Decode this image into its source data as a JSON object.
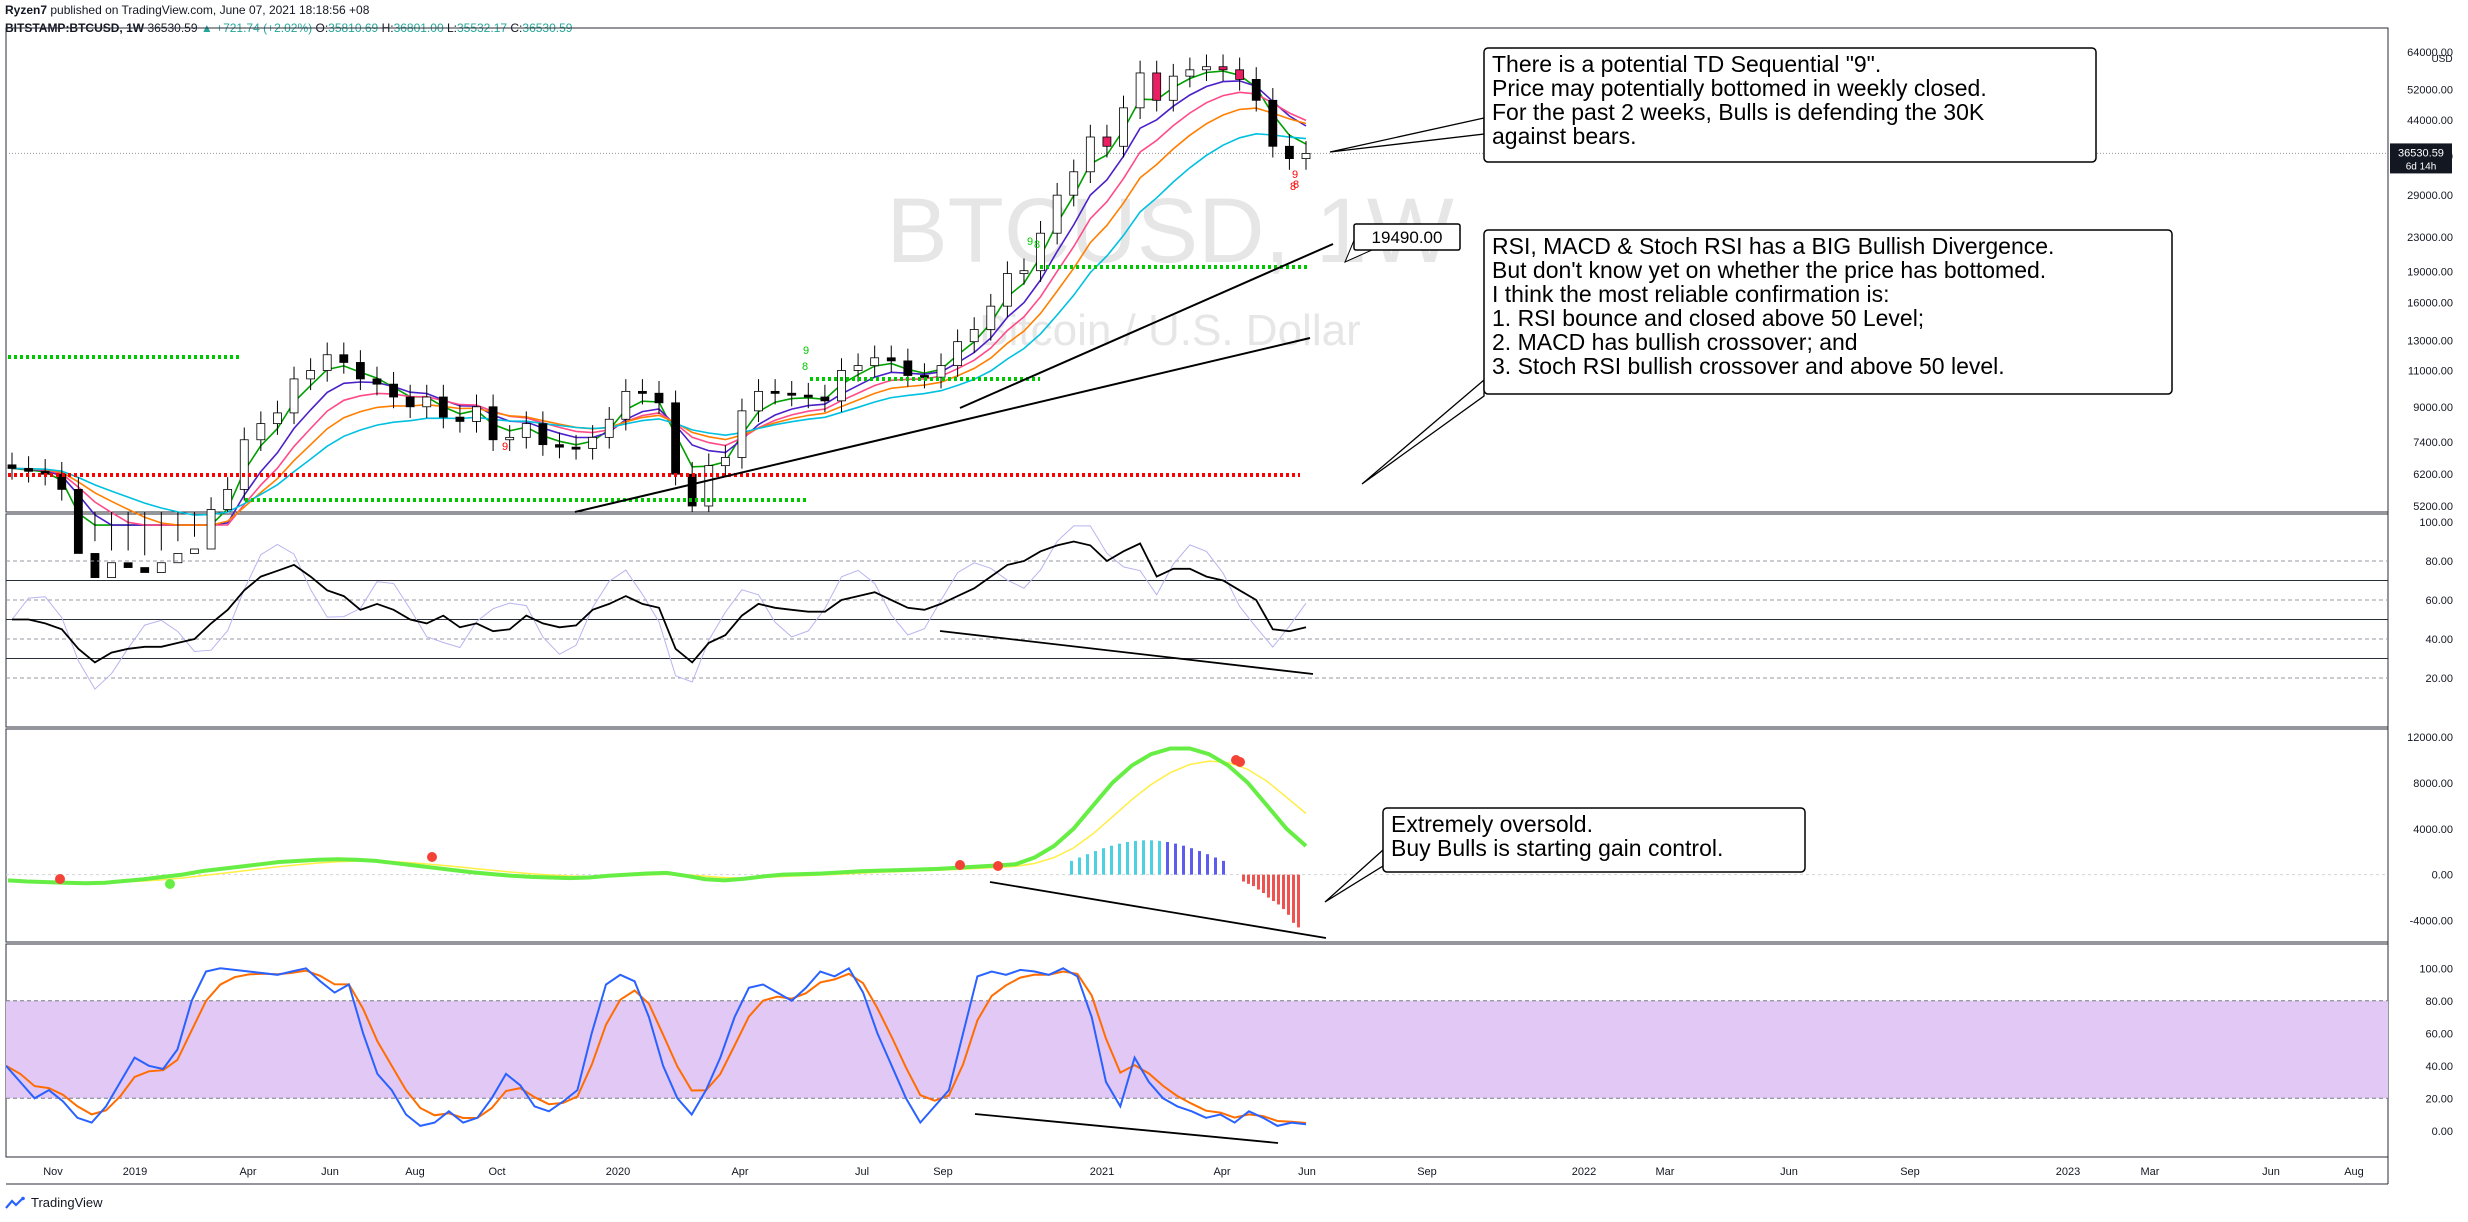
{
  "header": {
    "author": "Ryzen7",
    "published_line": " published on TradingView.com, June 07, 2021 18:18:56 +08",
    "symbol": "BITSTAMP:BTCUSD, 1W",
    "last": "36530.59",
    "change": "▲ +721.74 (+2.02%)",
    "o_label": "O:",
    "o": "35810.69",
    "h_label": "H:",
    "h": "36801.00",
    "l_label": "L:",
    "l": "35532.17",
    "c_label": "C:",
    "c": "36530.59"
  },
  "watermark": {
    "title": "BTCUSD, 1W",
    "subtitle": "Bitcoin / U.S. Dollar"
  },
  "footer": {
    "brand": "TradingView"
  },
  "colors": {
    "up": "#26a69a",
    "down": "#000000",
    "green_td": "#00c800",
    "red_td": "#ff0000",
    "stoch_band": "#e1c8f5",
    "macd_line": "#66ee44",
    "macd_signal": "#ffee44"
  },
  "chart_data": [
    {
      "type": "candlestick",
      "pane": "price",
      "log_scale": true,
      "currency": "USD",
      "price_ticks": [
        "64000.00",
        "52000.00",
        "44000.00",
        "36000.00",
        "29000.00",
        "23000.00",
        "19000.00",
        "16000.00",
        "13000.00",
        "11000.00",
        "9000.00",
        "7400.00",
        "6200.00",
        "5200.00"
      ],
      "last_price_label": "36530.59",
      "countdown_label": "6d 14h",
      "x_ticks": [
        "Nov",
        "2019",
        "Apr",
        "Jun",
        "Aug",
        "Oct",
        "2020",
        "Apr",
        "Jul",
        "Sep",
        "2021",
        "Apr",
        "Jun",
        "Sep",
        "2022",
        "Mar",
        "Jun",
        "Sep",
        "2023",
        "Mar",
        "Jun",
        "Aug"
      ],
      "price_series": [
        6400,
        6300,
        6200,
        5700,
        4000,
        3500,
        3800,
        3700,
        3600,
        3800,
        4000,
        4100,
        5100,
        5700,
        7500,
        8200,
        8700,
        10500,
        11000,
        12000,
        11500,
        10500,
        10200,
        9500,
        9000,
        9500,
        8500,
        8300,
        9000,
        7500,
        7600,
        8200,
        7300,
        7200,
        7150,
        7600,
        8400,
        9800,
        9700,
        9200,
        6200,
        5200,
        6500,
        6800,
        8800,
        9800,
        9700,
        9600,
        9500,
        9300,
        11000,
        11300,
        11800,
        11600,
        10700,
        10600,
        11300,
        12900,
        13800,
        15700,
        18800,
        19100,
        23500,
        29000,
        33000,
        40000,
        38000,
        47000,
        57000,
        49000,
        56000,
        58000,
        59000,
        58000,
        55000,
        49000,
        38000,
        35500,
        36530.59
      ],
      "annotations": [
        {
          "price": "19490.00"
        }
      ],
      "td_labels": [
        "9",
        "9",
        "8",
        "8",
        "9",
        "8",
        "9",
        "8"
      ]
    },
    {
      "type": "line",
      "pane": "rsi",
      "y_ticks": [
        "100.00",
        "80.00",
        "60.00",
        "40.00",
        "20.00"
      ],
      "ylim": [
        0,
        100
      ],
      "values": [
        50,
        50,
        48,
        45,
        35,
        28,
        33,
        35,
        36,
        36,
        38,
        40,
        48,
        55,
        65,
        72,
        75,
        78,
        72,
        65,
        62,
        55,
        58,
        55,
        50,
        48,
        52,
        46,
        48,
        44,
        45,
        52,
        48,
        46,
        47,
        55,
        58,
        62,
        58,
        56,
        35,
        28,
        38,
        42,
        52,
        58,
        56,
        55,
        54,
        54,
        60,
        62,
        64,
        60,
        56,
        55,
        58,
        62,
        66,
        72,
        78,
        80,
        85,
        88,
        90,
        88,
        80,
        85,
        89,
        72,
        76,
        76,
        72,
        70,
        65,
        60,
        45,
        44,
        46
      ]
    },
    {
      "type": "line",
      "pane": "macd",
      "y_ticks": [
        "12000.00",
        "8000.00",
        "4000.00",
        "0.00",
        "-4000.00"
      ],
      "ylim": [
        -5000,
        12000
      ],
      "macd": [
        -500,
        -600,
        -650,
        -700,
        -750,
        -700,
        -550,
        -400,
        -200,
        0,
        300,
        500,
        700,
        900,
        1100,
        1200,
        1300,
        1350,
        1300,
        1200,
        1000,
        800,
        600,
        400,
        200,
        50,
        -100,
        -200,
        -250,
        -300,
        -250,
        -100,
        0,
        100,
        150,
        -100,
        -400,
        -500,
        -350,
        -150,
        0,
        50,
        100,
        200,
        300,
        350,
        400,
        450,
        500,
        600,
        700,
        800,
        900,
        1500,
        2500,
        4000,
        6000,
        8000,
        9500,
        10500,
        11000,
        11000,
        10500,
        9500,
        8000,
        6000,
        4000,
        2500
      ],
      "histogram": [
        -600,
        -800,
        -1000,
        -1300,
        -1600,
        -2000,
        -2300,
        -2600,
        -3000,
        -3500,
        -4200,
        -4600
      ]
    },
    {
      "type": "line",
      "pane": "stoch_rsi",
      "y_ticks": [
        "100.00",
        "80.00",
        "60.00",
        "40.00",
        "20.00",
        "0.00"
      ],
      "ylim": [
        -10,
        110
      ],
      "band": [
        20,
        80
      ],
      "k": [
        40,
        30,
        20,
        25,
        18,
        8,
        5,
        15,
        30,
        45,
        40,
        38,
        50,
        80,
        98,
        100,
        99,
        98,
        97,
        96,
        98,
        100,
        92,
        85,
        90,
        60,
        35,
        25,
        10,
        3,
        5,
        12,
        5,
        8,
        20,
        35,
        28,
        15,
        12,
        18,
        25,
        60,
        90,
        96,
        92,
        70,
        40,
        20,
        10,
        25,
        45,
        70,
        88,
        90,
        85,
        80,
        88,
        98,
        95,
        100,
        85,
        60,
        40,
        20,
        5,
        15,
        25,
        60,
        95,
        98,
        96,
        99,
        98,
        96,
        100,
        95,
        70,
        30,
        15,
        45,
        30,
        20,
        15,
        12,
        8,
        10,
        5,
        12,
        8,
        3,
        5,
        4
      ]
    }
  ],
  "notes": [
    {
      "lines": [
        "There is a potential TD Sequential \"9\".",
        "Price may potentially bottomed in weekly closed.",
        "For the past 2 weeks, Bulls is defending the 30K",
        "against bears."
      ]
    },
    {
      "lines": [
        "RSI, MACD & Stoch RSI has a BIG Bullish Divergence.",
        "But don't know yet on whether the price has bottomed.",
        "I think the most reliable confirmation is:",
        "1. RSI bounce and closed above 50 Level;",
        "2. MACD has bullish crossover; and",
        "3. Stoch RSI bullish crossover and above 50 level."
      ]
    },
    {
      "lines": [
        "Extremely oversold.",
        "Buy Bulls is starting gain control."
      ]
    }
  ]
}
